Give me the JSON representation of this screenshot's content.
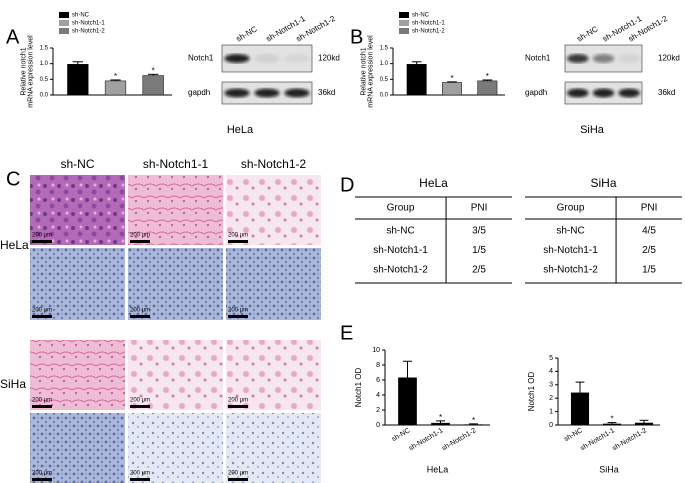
{
  "panel_labels": [
    "A",
    "B",
    "C",
    "D",
    "E"
  ],
  "chart_data": [
    {
      "type": "bar",
      "ylabel": [
        "Relative notch1",
        "mRNA expression level"
      ],
      "categories": [
        "sh-NC",
        "sh-Notch1-1",
        "sh-Notch1-2"
      ],
      "colors": [
        "#000000",
        "#a0a0a0",
        "#7a7a7a"
      ],
      "values": [
        0.98,
        0.45,
        0.62
      ],
      "errors": [
        0.08,
        0.03,
        0.04
      ],
      "value_annotations": [
        null,
        "*",
        "*"
      ],
      "ylim": [
        0,
        1.5
      ],
      "yticks": [
        {
          "value": 0,
          "label": "0.0"
        },
        {
          "value": 0.5,
          "label": "0.5"
        },
        {
          "value": 1,
          "label": "1.0"
        },
        {
          "value": 1.5,
          "label": "1.5"
        }
      ],
      "legend": "top-left"
    },
    {
      "type": "bar",
      "ylabel": [
        "Relative notch1",
        "mRNA expression level"
      ],
      "categories": [
        "sh-NC",
        "sh-Notch1-1",
        "sh-Notch1-2"
      ],
      "colors": [
        "#000000",
        "#a0a0a0",
        "#7a7a7a"
      ],
      "values": [
        0.98,
        0.4,
        0.45
      ],
      "errors": [
        0.08,
        0.02,
        0.03
      ],
      "value_annotations": [
        null,
        "*",
        "*"
      ],
      "ylim": [
        0,
        1.5
      ],
      "yticks": [
        {
          "value": 0,
          "label": "0.0"
        },
        {
          "value": 0.5,
          "label": "0.5"
        },
        {
          "value": 1,
          "label": "1.0"
        },
        {
          "value": 1.5,
          "label": "1.5"
        }
      ],
      "legend": "top-left"
    },
    {
      "type": "bar",
      "ylabel": [
        "Notch1 OD"
      ],
      "xlabel": "HeLa",
      "categories": [
        "sh-NC",
        "sh-Notch1-1",
        "sh-Notch1-2"
      ],
      "colors": [
        "#000000",
        "#000000",
        "#000000"
      ],
      "values": [
        6.3,
        0.25,
        0.05
      ],
      "errors": [
        2.2,
        0.3,
        0.1
      ],
      "value_annotations": [
        null,
        "*",
        "*"
      ],
      "ylim": [
        0,
        10
      ],
      "yticks": [
        0,
        2,
        4,
        6,
        8,
        10
      ]
    },
    {
      "type": "bar",
      "ylabel": [
        "Notch1 OD"
      ],
      "xlabel": "SiHa",
      "categories": [
        "sh-NC",
        "sh-Notch1-1",
        "sh-Notch1-2"
      ],
      "colors": [
        "#000000",
        "#000000",
        "#000000"
      ],
      "values": [
        2.4,
        0.08,
        0.15
      ],
      "errors": [
        0.8,
        0.1,
        0.2
      ],
      "value_annotations": [
        null,
        "*",
        null
      ],
      "ylim": [
        0,
        5
      ],
      "yticks": [
        0,
        1,
        2,
        3,
        4,
        5
      ]
    }
  ],
  "blots": [
    {
      "columns": [
        "sh-NC",
        "sh-Notch1-1",
        "sh-Notch1-2"
      ],
      "rows": [
        {
          "label": "Notch1",
          "size": "120kd"
        },
        {
          "label": "gapdh",
          "size": "36kd"
        }
      ],
      "caption": "HeLa"
    },
    {
      "columns": [
        "sh-NC",
        "sh-Notch1-1",
        "sh-Notch1-2"
      ],
      "rows": [
        {
          "label": "Notch1",
          "size": "120kd"
        },
        {
          "label": "gapdh",
          "size": "36kd"
        }
      ],
      "caption": "SiHa"
    }
  ],
  "histology": {
    "columns": [
      "sh-NC",
      "sh-Notch1-1",
      "sh-Notch1-2"
    ],
    "rows": [
      "HeLa",
      "SiHa"
    ],
    "scale_bar": "200 μm"
  },
  "pni_tables": [
    {
      "title": "HeLa",
      "header": [
        "Group",
        "PNI"
      ],
      "rows": [
        [
          "sh-NC",
          "3/5"
        ],
        [
          "sh-Notch1-1",
          "1/5"
        ],
        [
          "sh-Notch1-2",
          "2/5"
        ]
      ]
    },
    {
      "title": "SiHa",
      "header": [
        "Group",
        "PNI"
      ],
      "rows": [
        [
          "sh-NC",
          "4/5"
        ],
        [
          "sh-Notch1-1",
          "2/5"
        ],
        [
          "sh-Notch1-2",
          "1/5"
        ]
      ]
    }
  ]
}
